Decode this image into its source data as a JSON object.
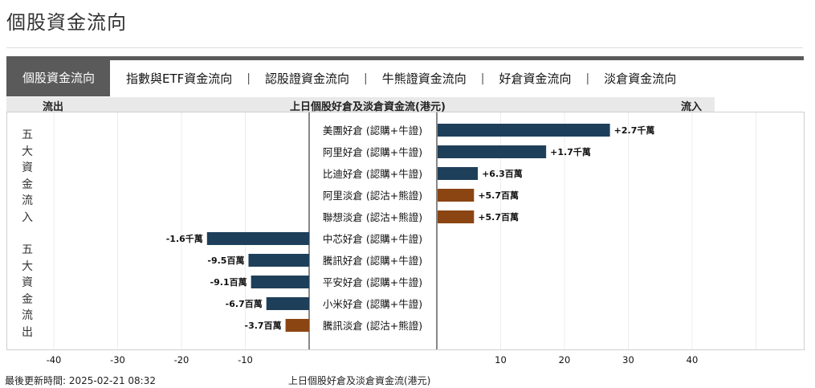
{
  "page": {
    "title": "個股資金流向"
  },
  "tabs": [
    {
      "label": "個股資金流向",
      "active": true
    },
    {
      "label": "指數與ETF資金流向",
      "active": false
    },
    {
      "label": "認股證資金流向",
      "active": false
    },
    {
      "label": "牛熊證資金流向",
      "active": false
    },
    {
      "label": "好倉資金流向",
      "active": false
    },
    {
      "label": "淡倉資金流向",
      "active": false
    }
  ],
  "tab_separator": "|",
  "chart_header": {
    "outflow": "流出",
    "title": "上日個股好倉及淡倉資金流(港元)",
    "inflow": "流入"
  },
  "side_labels": {
    "inflow": [
      "五",
      "大",
      "資",
      "金",
      "流",
      "入"
    ],
    "outflow": [
      "五",
      "大",
      "資",
      "金",
      "流",
      "出"
    ]
  },
  "colors": {
    "call_bull": "#1e3f5a",
    "put_bear": "#8b4513",
    "tab_active_bg": "#5a5a5a",
    "header_bg": "#e9e9e9"
  },
  "chart_data": {
    "type": "bar",
    "orientation": "horizontal-diverging",
    "unit": "百萬港元",
    "xlim": [
      -50,
      50
    ],
    "xticks": [
      -40,
      -30,
      -20,
      -10,
      10,
      20,
      30,
      40
    ],
    "xtick_labels": [
      "-40",
      "-30",
      "-20",
      "-10",
      "10",
      "20",
      "30",
      "40"
    ],
    "inflow": [
      {
        "label": "美團好倉 (認購+牛證)",
        "value": 27,
        "value_label": "+2.7千萬",
        "kind": "call_bull"
      },
      {
        "label": "阿里好倉 (認購+牛證)",
        "value": 17,
        "value_label": "+1.7千萬",
        "kind": "call_bull"
      },
      {
        "label": "比迪好倉 (認購+牛證)",
        "value": 6.3,
        "value_label": "+6.3百萬",
        "kind": "call_bull"
      },
      {
        "label": "阿里淡倉 (認沽+熊證)",
        "value": 5.7,
        "value_label": "+5.7百萬",
        "kind": "put_bear"
      },
      {
        "label": "聯想淡倉 (認沽+熊證)",
        "value": 5.7,
        "value_label": "+5.7百萬",
        "kind": "put_bear"
      }
    ],
    "outflow": [
      {
        "label": "中芯好倉 (認購+牛證)",
        "value": -16,
        "value_label": "-1.6千萬",
        "kind": "call_bull"
      },
      {
        "label": "騰訊好倉 (認購+牛證)",
        "value": -9.5,
        "value_label": "-9.5百萬",
        "kind": "call_bull"
      },
      {
        "label": "平安好倉 (認購+牛證)",
        "value": -9.1,
        "value_label": "-9.1百萬",
        "kind": "call_bull"
      },
      {
        "label": "小米好倉 (認購+牛證)",
        "value": -6.7,
        "value_label": "-6.7百萬",
        "kind": "call_bull"
      },
      {
        "label": "騰訊淡倉 (認沽+熊證)",
        "value": -3.7,
        "value_label": "-3.7百萬",
        "kind": "put_bear"
      }
    ]
  },
  "footer": {
    "updated": "最後更新時間: 2025-02-21 08:32",
    "caption": "上日個股好倉及淡倉資金流(港元)"
  }
}
